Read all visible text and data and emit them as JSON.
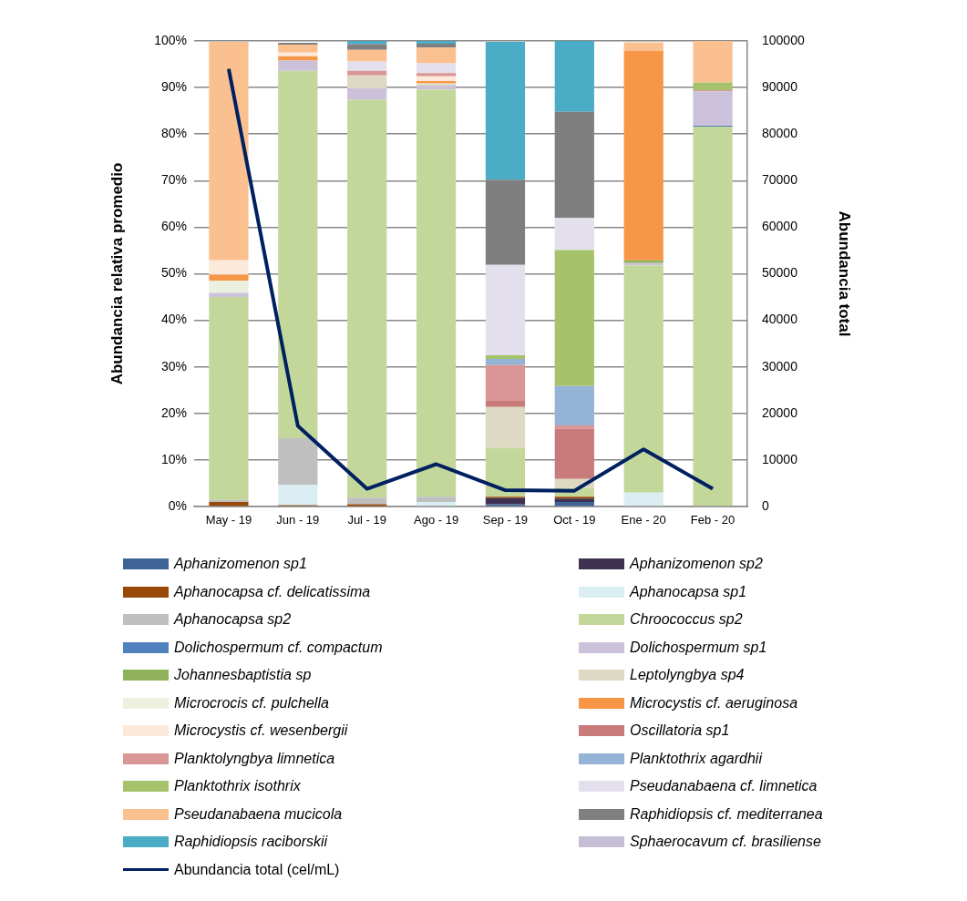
{
  "chart_data": {
    "type": "bar",
    "stacked": true,
    "categories": [
      "May - 19",
      "Jun - 19",
      "Jul - 19",
      "Ago - 19",
      "Sep - 19",
      "Oct - 19",
      "Ene - 20",
      "Feb - 20"
    ],
    "ylabel": "Abundancia relativa promedio",
    "y2label": "Abundancia total",
    "ylim": [
      0,
      100
    ],
    "yticks": [
      {
        "value": 0,
        "label": "0%"
      },
      {
        "value": 10,
        "label": "10%"
      },
      {
        "value": 20,
        "label": "20%"
      },
      {
        "value": 30,
        "label": "30%"
      },
      {
        "value": 40,
        "label": "40%"
      },
      {
        "value": 50,
        "label": "50%"
      },
      {
        "value": 60,
        "label": "60%"
      },
      {
        "value": 70,
        "label": "70%"
      },
      {
        "value": 80,
        "label": "80%"
      },
      {
        "value": 90,
        "label": "90%"
      },
      {
        "value": 100,
        "label": "100%"
      }
    ],
    "y2lim": [
      0,
      100000
    ],
    "y2ticks": [
      0,
      10000,
      20000,
      30000,
      40000,
      50000,
      60000,
      70000,
      80000,
      90000,
      100000
    ],
    "grid": "y",
    "legend": "bottom",
    "series": [
      {
        "name": "Aphanizomenon sp1",
        "color": "#3e6497",
        "values": [
          null,
          null,
          null,
          null,
          0.5,
          1.0,
          null,
          null
        ]
      },
      {
        "name": "Aphanizomenon sp2",
        "color": "#3f3151",
        "values": [
          null,
          null,
          null,
          null,
          1.3,
          0.7,
          null,
          null
        ]
      },
      {
        "name": "Aphanocapsa cf. delicatissima",
        "color": "#984807",
        "values": [
          1.0,
          0.3,
          0.5,
          null,
          0.3,
          0.4,
          null,
          null
        ]
      },
      {
        "name": "Aphanocapsa sp1",
        "color": "#dbeef4",
        "values": [
          null,
          4.4,
          null,
          1.0,
          null,
          null,
          3.0,
          null
        ]
      },
      {
        "name": "Aphanocapsa sp2",
        "color": "#bfbfbf",
        "values": [
          0.4,
          10.0,
          1.4,
          1.1,
          null,
          null,
          null,
          null
        ]
      },
      {
        "name": "Chroococcus sp2",
        "color": "#c4d79b",
        "values": [
          43.6,
          78.9,
          85.5,
          87.5,
          10.5,
          1.9,
          48.8,
          81.6
        ]
      },
      {
        "name": "Dolichospermum cf. compactum",
        "color": "#4f81bd",
        "values": [
          null,
          null,
          null,
          null,
          null,
          null,
          null,
          0.2
        ]
      },
      {
        "name": "Dolichospermum sp1",
        "color": "#ccc1da",
        "values": [
          0.9,
          2.2,
          2.4,
          0.8,
          null,
          null,
          0.5,
          7.4
        ]
      },
      {
        "name": "Johannesbaptistia sp",
        "color": "#8fb25a",
        "values": [
          null,
          null,
          null,
          null,
          null,
          null,
          0.6,
          null
        ]
      },
      {
        "name": "Leptolyngbya sp4",
        "color": "#ddd9c3",
        "values": [
          null,
          null,
          2.8,
          0.5,
          8.8,
          1.9,
          null,
          null
        ]
      },
      {
        "name": "Microcrocis cf. pulchella",
        "color": "#ebf1de",
        "values": [
          2.6,
          null,
          null,
          null,
          null,
          null,
          null,
          null
        ]
      },
      {
        "name": "Microcystis cf. aeruginosa",
        "color": "#f79646",
        "values": [
          1.3,
          0.9,
          null,
          0.5,
          null,
          null,
          45.0,
          null
        ]
      },
      {
        "name": "Microcystis cf. wesenbergii",
        "color": "#fde9d9",
        "values": [
          3.1,
          0.8,
          null,
          1.0,
          null,
          null,
          null,
          null
        ]
      },
      {
        "name": "Oscillatoria sp1",
        "color": "#c97b7b",
        "values": [
          null,
          null,
          null,
          null,
          1.3,
          10.8,
          null,
          0.2
        ]
      },
      {
        "name": "Planktolyngbya limnetica",
        "color": "#da9694",
        "values": [
          null,
          null,
          1.0,
          0.7,
          7.7,
          0.7,
          null,
          null
        ]
      },
      {
        "name": "Planktothrix agardhii",
        "color": "#95b3d7",
        "values": [
          null,
          null,
          null,
          null,
          1.3,
          8.5,
          null,
          null
        ]
      },
      {
        "name": "Planktothrix isothrix",
        "color": "#a6c26a",
        "values": [
          null,
          null,
          null,
          null,
          0.8,
          29.2,
          null,
          1.7
        ]
      },
      {
        "name": "Pseudanabaena cf. limnetica",
        "color": "#e4dfec",
        "values": [
          null,
          null,
          2.0,
          2.1,
          19.4,
          6.9,
          null,
          null
        ]
      },
      {
        "name": "Pseudanabaena mucicola",
        "color": "#fac090",
        "values": [
          46.9,
          1.7,
          2.5,
          3.4,
          null,
          null,
          1.8,
          8.9
        ]
      },
      {
        "name": "Raphidiopsis cf. mediterranea",
        "color": "#7f7f7f",
        "values": [
          null,
          0.4,
          1.2,
          0.8,
          18.3,
          22.8,
          null,
          null
        ]
      },
      {
        "name": "Raphidiopsis raciborskii",
        "color": "#4bacc6",
        "values": [
          null,
          null,
          0.7,
          0.6,
          29.6,
          15.2,
          null,
          null
        ]
      },
      {
        "name": "Sphaerocavum cf. brasiliense",
        "color": "#c5bed6",
        "values": [
          null,
          null,
          null,
          null,
          null,
          null,
          null,
          null
        ]
      },
      {
        "name": "Abundancia total (cel/mL)",
        "type": "line",
        "axis": "y2",
        "color": "#002060",
        "values": [
          94000,
          17300,
          3800,
          9100,
          3500,
          3400,
          12300,
          3800
        ]
      }
    ]
  }
}
